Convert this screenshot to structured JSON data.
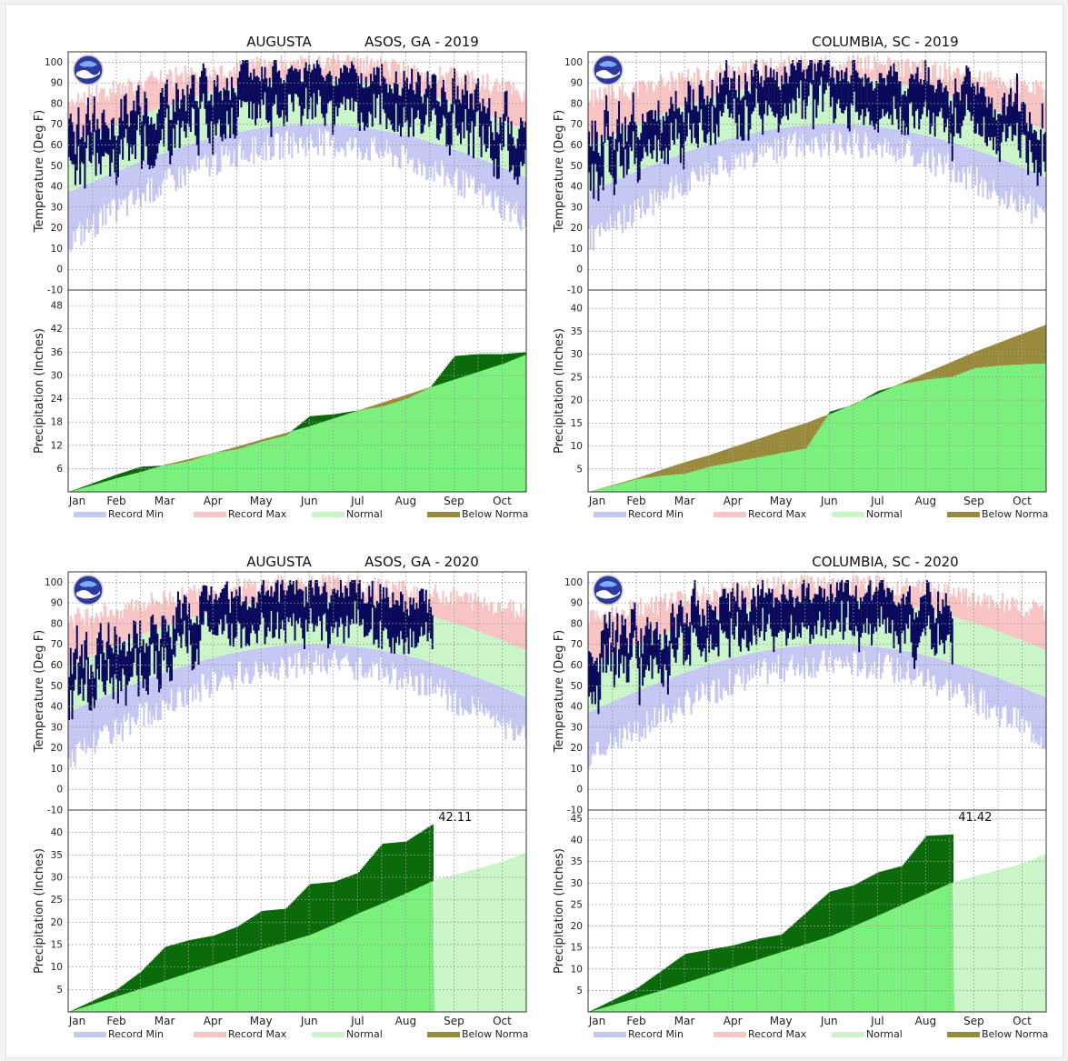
{
  "months": [
    "Jan",
    "Feb",
    "Mar",
    "Apr",
    "May",
    "Jun",
    "Jul",
    "Aug",
    "Sep",
    "Oct"
  ],
  "temp_ticks": [
    100,
    90,
    80,
    70,
    60,
    50,
    40,
    30,
    20,
    10,
    0,
    -10
  ],
  "legend": [
    "Record Min",
    "Record Max",
    "Normal",
    "Below Norma"
  ],
  "colors": {
    "record_min": "#c6c8f4",
    "record_max": "#f8c4c4",
    "normal_temp": "#c9f5c9",
    "observed_temp": "#0a0a5c",
    "normal_precip": "#7cf07c",
    "above_normal": "#0b6b0b",
    "below_normal": "#9a8a3c",
    "future_normal": "#c9f5c9"
  },
  "chart_data": [
    {
      "type": "area",
      "station": "AUGUSTA",
      "title": "ASOS, GA - 2019",
      "temp_ylabel": "Temperature (Deg F)",
      "precip_ylabel": "Precipitation (Inches)",
      "precip_ticks": [
        6,
        12,
        18,
        24,
        30,
        36,
        42,
        48
      ],
      "precip_max": 52,
      "data_end_month": 9.5,
      "temp_ylim": [
        -10,
        105
      ],
      "precip_anchors": {
        "x": [
          0,
          1,
          1.5,
          2,
          2.5,
          3,
          3.5,
          4,
          4.5,
          5,
          5.5,
          6,
          6.5,
          7,
          7.5,
          8,
          8.5,
          9,
          9.5
        ],
        "normal": [
          0,
          3.6,
          5.2,
          7,
          8.5,
          10,
          11.7,
          13.5,
          15.2,
          17,
          19,
          21,
          23,
          25,
          27,
          29,
          31,
          33,
          35.5
        ],
        "observed": [
          0,
          4.5,
          6.5,
          6.8,
          8,
          10,
          11,
          13,
          14.5,
          19.5,
          20,
          21,
          22,
          24,
          27,
          35,
          35.5,
          35.5,
          36
        ]
      },
      "precip_label": ""
    },
    {
      "type": "area",
      "station": "",
      "title": "COLUMBIA, SC - 2019",
      "temp_ylabel": "Temperature (Deg F)",
      "precip_ylabel": "Precipitation (Inches)",
      "precip_ticks": [
        5,
        10,
        15,
        20,
        25,
        30,
        35,
        40
      ],
      "precip_max": 44,
      "data_end_month": 9.5,
      "temp_ylim": [
        -10,
        105
      ],
      "precip_anchors": {
        "x": [
          0,
          1,
          1.5,
          2,
          2.5,
          3,
          3.5,
          4,
          4.5,
          5,
          5.5,
          6,
          6.5,
          7,
          7.5,
          8,
          8.5,
          9,
          9.5
        ],
        "normal": [
          0,
          3,
          4.8,
          6.5,
          8,
          9.8,
          11.5,
          13.3,
          15,
          17,
          19.2,
          21.5,
          23.8,
          26,
          28.2,
          30.5,
          32.5,
          34.5,
          36.5
        ],
        "observed": [
          0,
          2.8,
          3.5,
          4,
          5.5,
          6.5,
          7.5,
          8.5,
          9.5,
          17.5,
          19,
          22,
          23.5,
          24.5,
          25,
          27,
          27.5,
          27.8,
          28
        ]
      },
      "precip_label": ""
    },
    {
      "type": "area",
      "station": "AUGUSTA",
      "title": "ASOS, GA - 2020",
      "temp_ylabel": "Temperature (Deg F)",
      "precip_ylabel": "Precipitation (Inches)",
      "precip_ticks": [
        5,
        10,
        15,
        20,
        25,
        30,
        35,
        40
      ],
      "precip_max": 45,
      "data_end_month": 7.6,
      "temp_ylim": [
        -10,
        105
      ],
      "precip_anchors": {
        "x": [
          0,
          1,
          1.5,
          2,
          2.5,
          3,
          3.5,
          4,
          4.5,
          5,
          5.5,
          6,
          6.5,
          7,
          7.5,
          7.6,
          8,
          9,
          9.5
        ],
        "normal": [
          0,
          3.5,
          5.2,
          7,
          8.8,
          10.5,
          12.2,
          14,
          15.6,
          17.2,
          19.5,
          22,
          24.2,
          26.5,
          29,
          29.4,
          30.5,
          33.5,
          35.5
        ],
        "observed": [
          0,
          5,
          9,
          14.5,
          16,
          17,
          19,
          22.5,
          23,
          28.5,
          29,
          31,
          37.5,
          38,
          41.5,
          42.11,
          42.11,
          42.11,
          42.11
        ]
      },
      "precip_label": "42.11"
    },
    {
      "type": "area",
      "station": "",
      "title": "COLUMBIA, SC - 2020",
      "temp_ylabel": "Temperature (Deg F)",
      "precip_ylabel": "Precipitation (Inches)",
      "precip_ticks": [
        5,
        10,
        15,
        20,
        25,
        30,
        35,
        40,
        45
      ],
      "precip_max": 47,
      "data_end_month": 7.6,
      "temp_ylim": [
        -10,
        105
      ],
      "precip_anchors": {
        "x": [
          0,
          1,
          1.5,
          2,
          2.5,
          3,
          3.5,
          4,
          4.5,
          5,
          5.5,
          6,
          6.5,
          7,
          7.5,
          7.6,
          8,
          9,
          9.5
        ],
        "normal": [
          0,
          3.3,
          5,
          6.8,
          8.6,
          10.4,
          12.2,
          14,
          15.8,
          17.6,
          20,
          22.5,
          25,
          27.5,
          30,
          30.3,
          31.5,
          34.5,
          36.8
        ],
        "observed": [
          0,
          5.5,
          9.5,
          13.5,
          14.5,
          15.5,
          17,
          18,
          23,
          28,
          29.5,
          32.5,
          34,
          41,
          41.3,
          41.42,
          41.42,
          41.42,
          41.42
        ]
      },
      "precip_label": "41.42"
    }
  ]
}
